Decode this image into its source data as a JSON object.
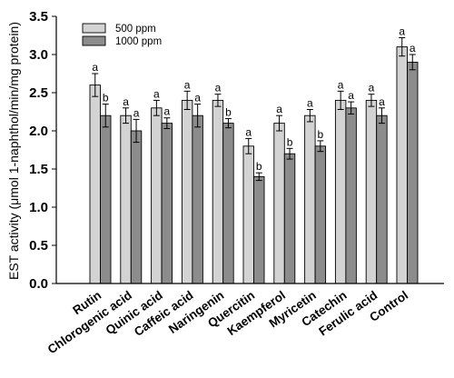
{
  "chart_data": {
    "type": "bar",
    "ylabel": "EST activity (μmol 1-naphthol/min/mg protein)",
    "ylim": [
      0,
      3.5
    ],
    "yticks": [
      "0.0",
      "0.5",
      "1.0",
      "1.5",
      "2.0",
      "2.5",
      "3.0",
      "3.5"
    ],
    "categories": [
      "Rutin",
      "Chlorogenic acid",
      "Quinic acid",
      "Caffeic acid",
      "Naringenin",
      "Quercitin",
      "Kaempferol",
      "Myricetin",
      "Catechin",
      "Ferulic acid",
      "Control"
    ],
    "legend_position": "top-left",
    "series": [
      {
        "name": "500 ppm",
        "color": "#d3d3d3",
        "values": [
          2.6,
          2.2,
          2.3,
          2.4,
          2.4,
          1.8,
          2.1,
          2.2,
          2.4,
          2.4,
          3.1
        ],
        "errors": [
          0.15,
          0.1,
          0.1,
          0.12,
          0.08,
          0.1,
          0.1,
          0.08,
          0.12,
          0.08,
          0.12
        ],
        "sig": [
          "a",
          "a",
          "a",
          "a",
          "a",
          "a",
          "a",
          "a",
          "a",
          "a",
          "a"
        ]
      },
      {
        "name": "1000 ppm",
        "color": "#8c8c8c",
        "values": [
          2.2,
          2.0,
          2.1,
          2.2,
          2.1,
          1.4,
          1.7,
          1.8,
          2.3,
          2.2,
          2.9
        ],
        "errors": [
          0.15,
          0.15,
          0.07,
          0.15,
          0.06,
          0.05,
          0.07,
          0.07,
          0.08,
          0.1,
          0.1
        ],
        "sig": [
          "b",
          "a",
          "a",
          "a",
          "b",
          "b",
          "b",
          "b",
          "a",
          "a",
          "a"
        ]
      }
    ]
  }
}
